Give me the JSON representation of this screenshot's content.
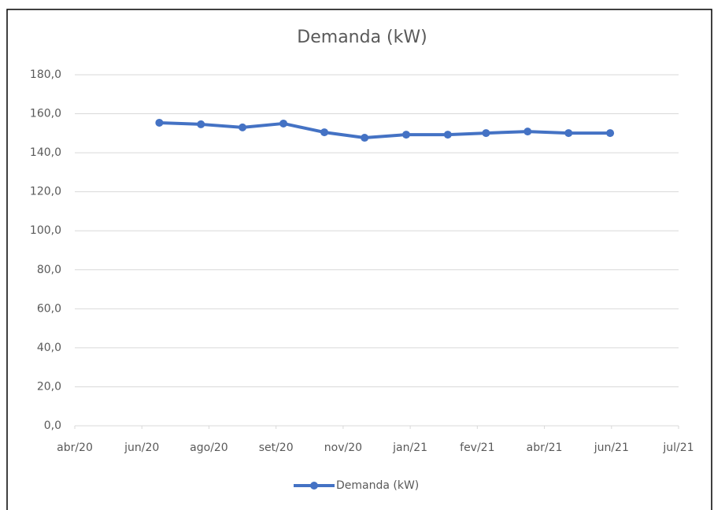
{
  "chart_data": {
    "type": "line",
    "title": "Demanda (kW)",
    "x": [
      1.26,
      1.88,
      2.5,
      3.11,
      3.72,
      4.32,
      4.94,
      5.56,
      6.13,
      6.75,
      7.36,
      7.98
    ],
    "series": [
      {
        "name": "Demanda (kW)",
        "color": "#4472c4",
        "values": [
          155.4,
          154.6,
          153.0,
          155.0,
          150.5,
          147.7,
          149.3,
          149.3,
          150.1,
          150.9,
          150.1,
          150.1
        ]
      }
    ],
    "xlim": [
      0,
      9
    ],
    "xticks": [
      {
        "value": 0,
        "label": "abr/20"
      },
      {
        "value": 1,
        "label": "jun/20"
      },
      {
        "value": 2,
        "label": "ago/20"
      },
      {
        "value": 3,
        "label": "set/20"
      },
      {
        "value": 4,
        "label": "nov/20"
      },
      {
        "value": 5,
        "label": "jan/21"
      },
      {
        "value": 6,
        "label": "fev/21"
      },
      {
        "value": 7,
        "label": "abr/21"
      },
      {
        "value": 8,
        "label": "jun/21"
      },
      {
        "value": 9,
        "label": "jul/21"
      }
    ],
    "ylim": [
      0,
      180
    ],
    "yticks": [
      {
        "value": 0,
        "label": "0,0"
      },
      {
        "value": 20,
        "label": "20,0"
      },
      {
        "value": 40,
        "label": "40,0"
      },
      {
        "value": 60,
        "label": "60,0"
      },
      {
        "value": 80,
        "label": "80,0"
      },
      {
        "value": 100,
        "label": "100,0"
      },
      {
        "value": 120,
        "label": "120,0"
      },
      {
        "value": 140,
        "label": "140,0"
      },
      {
        "value": 160,
        "label": "160,0"
      },
      {
        "value": 180,
        "label": "180,0"
      }
    ],
    "grid": true,
    "legend": "bottom"
  }
}
